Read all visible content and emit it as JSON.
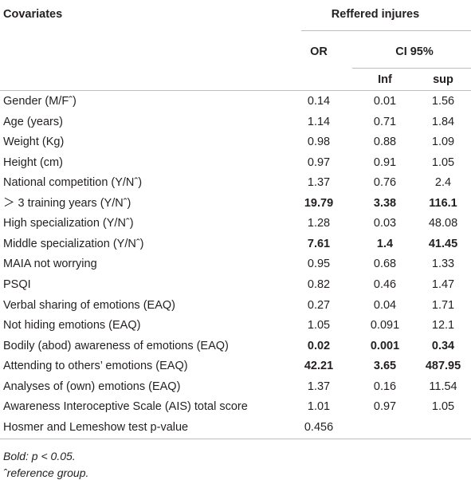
{
  "header": {
    "covariates": "Covariates",
    "group": "Reffered injures",
    "or": "OR",
    "ci": "CI 95%",
    "inf": "Inf",
    "sup": "sup"
  },
  "table": {
    "rows": [
      {
        "cells": [
          "Gender (M/Fˆ)",
          "0.14",
          "0.01",
          "1.56"
        ],
        "bold": false
      },
      {
        "cells": [
          "Age (years)",
          "1.14",
          "0.71",
          "1.84"
        ],
        "bold": false
      },
      {
        "cells": [
          "Weight (Kg)",
          "0.98",
          "0.88",
          "1.09"
        ],
        "bold": false
      },
      {
        "cells": [
          "Height (cm)",
          "0.97",
          "0.91",
          "1.05"
        ],
        "bold": false
      },
      {
        "cells": [
          "National competition (Y/Nˆ)",
          "1.37",
          "0.76",
          "2.4"
        ],
        "bold": false
      },
      {
        "cells": [
          "＞ 3 training years (Y/Nˆ)",
          "19.79",
          "3.38",
          "116.1"
        ],
        "bold": true
      },
      {
        "cells": [
          "High specialization (Y/Nˆ)",
          "1.28",
          "0.03",
          "48.08"
        ],
        "bold": false
      },
      {
        "cells": [
          "Middle specialization (Y/Nˆ)",
          "7.61",
          "1.4",
          "41.45"
        ],
        "bold": true
      },
      {
        "cells": [
          "MAIA not worrying",
          "0.95",
          "0.68",
          "1.33"
        ],
        "bold": false
      },
      {
        "cells": [
          "PSQI",
          "0.82",
          "0.46",
          "1.47"
        ],
        "bold": false
      },
      {
        "cells": [
          "Verbal sharing of emotions (EAQ)",
          "0.27",
          "0.04",
          "1.71"
        ],
        "bold": false
      },
      {
        "cells": [
          "Not hiding emotions (EAQ)",
          "1.05",
          "0.091",
          "12.1"
        ],
        "bold": false
      },
      {
        "cells": [
          "Bodily (abod) awareness of emotions (EAQ)",
          "0.02",
          "0.001",
          "0.34"
        ],
        "bold": true
      },
      {
        "cells": [
          "Attending to others’ emotions (EAQ)",
          "42.21",
          "3.65",
          "487.95"
        ],
        "bold": true
      },
      {
        "cells": [
          "Analyses of (own) emotions (EAQ)",
          "1.37",
          "0.16",
          "11.54"
        ],
        "bold": false
      },
      {
        "cells": [
          "Awareness Interoceptive Scale (AIS) total score",
          "1.01",
          "0.97",
          "1.05"
        ],
        "bold": false
      },
      {
        "cells": [
          "Hosmer and Lemeshow test p-value",
          "0.456"
        ],
        "bold": false
      }
    ]
  },
  "footnotes": [
    "Bold: p < 0.05.",
    "ˆreference group."
  ]
}
